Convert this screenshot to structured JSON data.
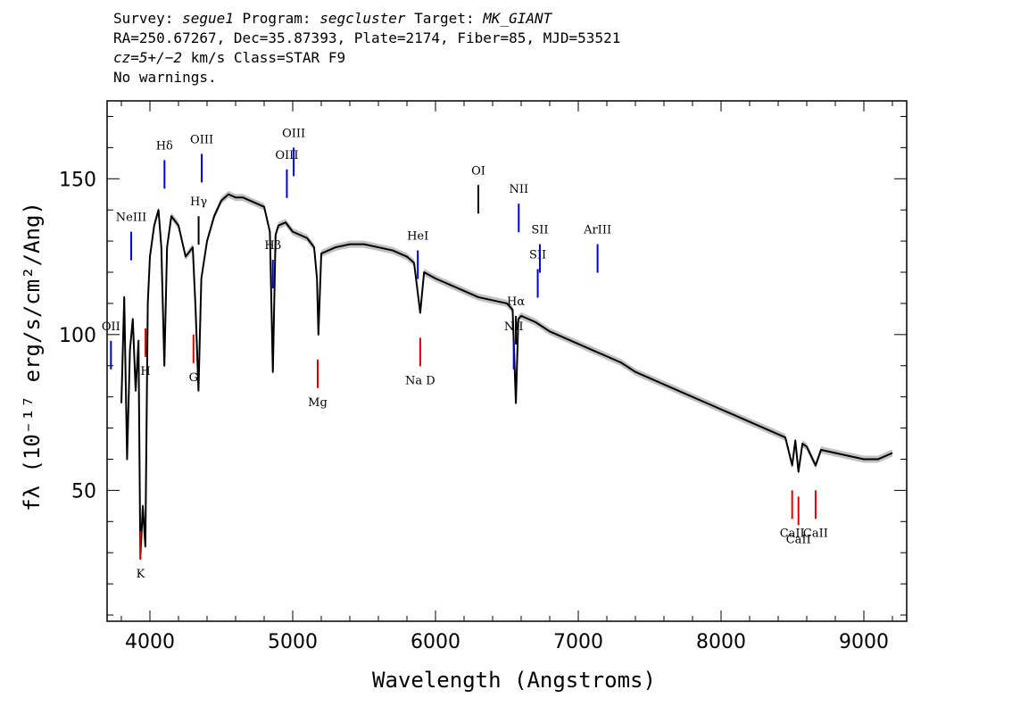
{
  "header": {
    "line1": {
      "survey_label": "Survey: ",
      "survey": "segue1",
      "program_label": " Program: ",
      "program": "segcluster",
      "target_label": " Target: ",
      "target": "MK_GIANT"
    },
    "line2": "RA=250.67267, Dec=35.87393, Plate=2174, Fiber=85, MJD=53521",
    "line3": {
      "cz": "cz=5+/−2",
      "rest": " km/s Class=STAR F9"
    },
    "line4": "No warnings."
  },
  "chart_data": {
    "type": "line",
    "xlabel": "Wavelength (Angstroms)",
    "ylabel": "fλ (10⁻¹⁷ erg/s/cm²/Ang)",
    "xlim": [
      3700,
      9300
    ],
    "ylim": [
      8,
      175
    ],
    "x_ticks": [
      4000,
      5000,
      6000,
      7000,
      8000,
      9000
    ],
    "y_ticks": [
      50,
      100,
      150
    ],
    "grid": false,
    "series": [
      {
        "color": "#000000",
        "error_band_color": "#b3b3b3",
        "x": [
          3800,
          3820,
          3840,
          3860,
          3880,
          3900,
          3920,
          3933,
          3950,
          3968,
          3985,
          4000,
          4030,
          4060,
          4080,
          4101,
          4120,
          4150,
          4200,
          4250,
          4300,
          4320,
          4340,
          4360,
          4400,
          4450,
          4500,
          4550,
          4600,
          4650,
          4700,
          4750,
          4800,
          4840,
          4861,
          4880,
          4900,
          4950,
          5000,
          5050,
          5100,
          5150,
          5170,
          5180,
          5200,
          5250,
          5300,
          5400,
          5500,
          5600,
          5700,
          5800,
          5850,
          5893,
          5920,
          6000,
          6100,
          6200,
          6300,
          6400,
          6500,
          6540,
          6563,
          6580,
          6600,
          6700,
          6800,
          6900,
          7000,
          7100,
          7200,
          7300,
          7400,
          7500,
          7600,
          7700,
          7800,
          7900,
          8000,
          8100,
          8200,
          8300,
          8400,
          8450,
          8498,
          8520,
          8542,
          8570,
          8600,
          8662,
          8700,
          8800,
          8900,
          9000,
          9100,
          9200
        ],
        "y": [
          78,
          112,
          60,
          95,
          105,
          82,
          98,
          28,
          45,
          32,
          110,
          125,
          135,
          140,
          128,
          90,
          128,
          138,
          135,
          125,
          128,
          108,
          82,
          118,
          130,
          138,
          143,
          145,
          144,
          144,
          143,
          142,
          141,
          133,
          88,
          132,
          135,
          136,
          133,
          132,
          131,
          128,
          118,
          100,
          126,
          127,
          128,
          129,
          129,
          128,
          127,
          125,
          123,
          107,
          120,
          118,
          116,
          114,
          112,
          111,
          110,
          108,
          78,
          105,
          106,
          104,
          101,
          99,
          97,
          95,
          93,
          91,
          88,
          86,
          84,
          82,
          80,
          78,
          76,
          74,
          72,
          70,
          68,
          67,
          58,
          66,
          56,
          65,
          64,
          58,
          63,
          62,
          61,
          60,
          60,
          62
        ]
      }
    ],
    "lines": [
      {
        "label": "OII",
        "wavelength": 3727,
        "color": "blue",
        "pos": "upper"
      },
      {
        "label": "NeIII",
        "wavelength": 3869,
        "color": "blue",
        "pos": "upper"
      },
      {
        "label": "K",
        "wavelength": 3934,
        "color": "red",
        "pos": "lower"
      },
      {
        "label": "H",
        "wavelength": 3969,
        "color": "red",
        "pos": "lower"
      },
      {
        "label": "Hδ",
        "wavelength": 4102,
        "color": "blue",
        "pos": "upper"
      },
      {
        "label": "G",
        "wavelength": 4305,
        "color": "red",
        "pos": "lower"
      },
      {
        "label": "Hγ",
        "wavelength": 4341,
        "color": "black",
        "pos": "upper"
      },
      {
        "label": "OIII",
        "wavelength": 4363,
        "color": "blue",
        "pos": "upper"
      },
      {
        "label": "Hβ",
        "wavelength": 4861,
        "color": "blue",
        "pos": "upper"
      },
      {
        "label": "OIII",
        "wavelength": 4959,
        "color": "blue",
        "pos": "upper"
      },
      {
        "label": "OIII",
        "wavelength": 5007,
        "color": "blue",
        "pos": "upper"
      },
      {
        "label": "Mg",
        "wavelength": 5175,
        "color": "red",
        "pos": "lower"
      },
      {
        "label": "HeI",
        "wavelength": 5876,
        "color": "blue",
        "pos": "upper"
      },
      {
        "label": "Na D",
        "wavelength": 5893,
        "color": "red",
        "pos": "lower"
      },
      {
        "label": "OI",
        "wavelength": 6300,
        "color": "black",
        "pos": "upper"
      },
      {
        "label": "NII",
        "wavelength": 6548,
        "color": "blue",
        "pos": "upper"
      },
      {
        "label": "Hα",
        "wavelength": 6563,
        "color": "black",
        "pos": "upper"
      },
      {
        "label": "NII",
        "wavelength": 6583,
        "color": "blue",
        "pos": "upper"
      },
      {
        "label": "SII",
        "wavelength": 6716,
        "color": "blue",
        "pos": "upper"
      },
      {
        "label": "SII",
        "wavelength": 6731,
        "color": "blue",
        "pos": "upper"
      },
      {
        "label": "ArIII",
        "wavelength": 7135,
        "color": "blue",
        "pos": "upper"
      },
      {
        "label": "CaII",
        "wavelength": 8498,
        "color": "red",
        "pos": "lower"
      },
      {
        "label": "CaII",
        "wavelength": 8542,
        "color": "red",
        "pos": "lower"
      },
      {
        "label": "CaII",
        "wavelength": 8662,
        "color": "red",
        "pos": "lower"
      }
    ]
  }
}
